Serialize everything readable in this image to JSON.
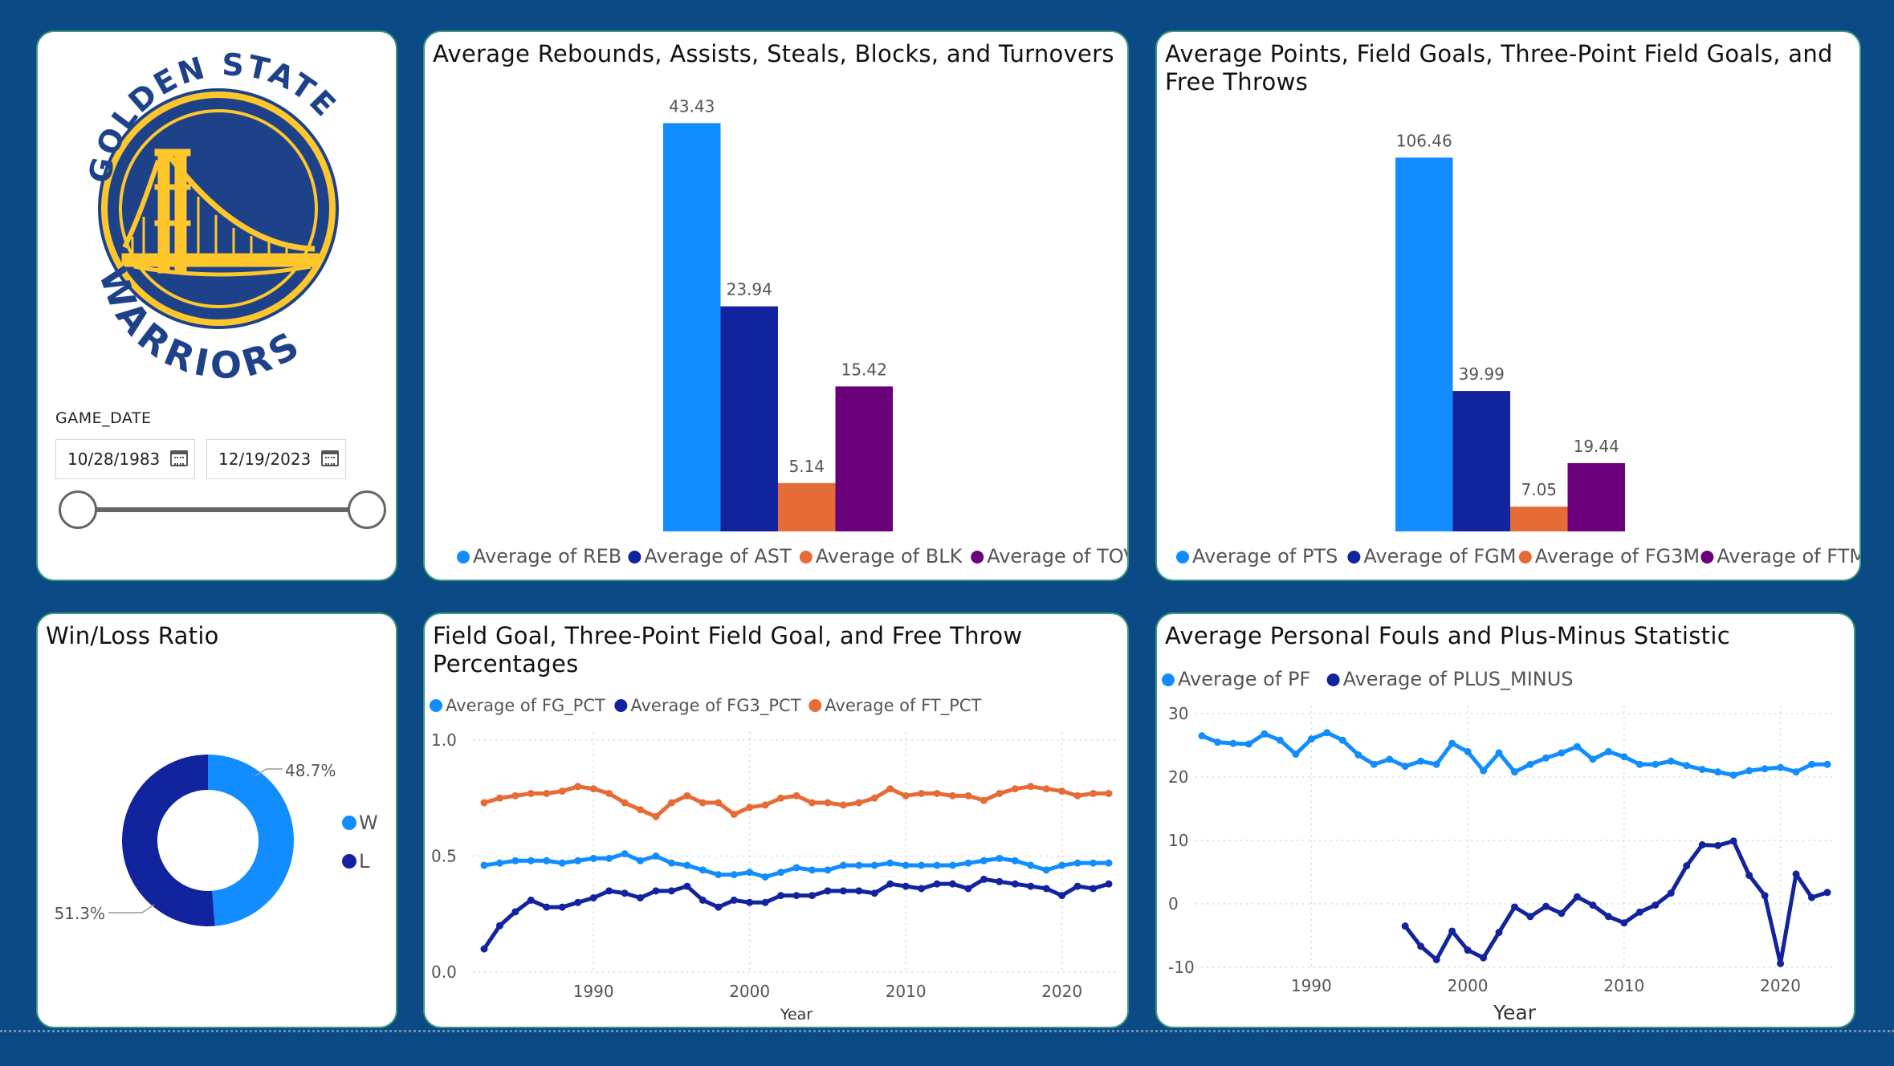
{
  "slicer": {
    "field_label": "GAME_DATE",
    "start_date": "10/28/1983",
    "end_date": "12/19/2023"
  },
  "logo": {
    "text_top": "GOLDEN STATE",
    "text_bottom": "WARRIORS",
    "colors": {
      "blue": "#1d428a",
      "gold": "#ffc72c"
    }
  },
  "colors": {
    "light_blue": "#118dff",
    "dark_blue": "#12239e",
    "orange": "#e66c37",
    "purple": "#6b007b"
  },
  "chart_data": [
    {
      "id": "reb_ast_blk_tov",
      "type": "bar",
      "title": "Average Rebounds, Assists, Steals, Blocks, and Turnovers",
      "categories": [
        "Average of REB",
        "Average of AST",
        "Average of BLK",
        "Average of TOV"
      ],
      "values": [
        43.43,
        23.94,
        5.14,
        15.42
      ],
      "data_labels": [
        "43.43",
        "23.94",
        "5.14",
        "15.42"
      ],
      "colors": [
        "#118dff",
        "#12239e",
        "#e66c37",
        "#6b007b"
      ],
      "legend_position": "bottom",
      "ylim": [
        0,
        45
      ]
    },
    {
      "id": "pts_fgm_fg3m_ftm",
      "type": "bar",
      "title": "Average Points, Field Goals, Three-Point Field Goals, and Free Throws",
      "categories": [
        "Average of PTS",
        "Average of FGM",
        "Average of FG3M",
        "Average of FTM"
      ],
      "values": [
        106.46,
        39.99,
        7.05,
        19.44
      ],
      "data_labels": [
        "106.46",
        "39.99",
        "7.05",
        "19.44"
      ],
      "colors": [
        "#118dff",
        "#12239e",
        "#e66c37",
        "#6b007b"
      ],
      "legend_position": "bottom",
      "ylim": [
        0,
        115
      ]
    },
    {
      "id": "win_loss",
      "type": "pie",
      "title": "Win/Loss Ratio",
      "labels": [
        "W",
        "L"
      ],
      "values": [
        48.7,
        51.3
      ],
      "data_labels": [
        "48.7%",
        "51.3%"
      ],
      "colors": [
        "#118dff",
        "#12239e"
      ],
      "legend_position": "right"
    },
    {
      "id": "pct_lines",
      "type": "line",
      "title": "Field Goal, Three-Point Field Goal, and Free Throw Percentages",
      "xlabel": "Year",
      "xlim": [
        1983,
        2023
      ],
      "ylim": [
        0,
        1
      ],
      "x_ticks": [
        1990,
        2000,
        2010,
        2020
      ],
      "y_ticks": [
        0,
        0.5,
        1
      ],
      "y_tick_labels": [
        "0.0",
        "0.5",
        "1.0"
      ],
      "legend_position": "top-left",
      "x": [
        1983,
        1984,
        1985,
        1986,
        1987,
        1988,
        1989,
        1990,
        1991,
        1992,
        1993,
        1994,
        1995,
        1996,
        1997,
        1998,
        1999,
        2000,
        2001,
        2002,
        2003,
        2004,
        2005,
        2006,
        2007,
        2008,
        2009,
        2010,
        2011,
        2012,
        2013,
        2014,
        2015,
        2016,
        2017,
        2018,
        2019,
        2020,
        2021,
        2022,
        2023
      ],
      "series": [
        {
          "name": "Average of FG_PCT",
          "color": "#118dff",
          "values": [
            0.46,
            0.47,
            0.48,
            0.48,
            0.48,
            0.47,
            0.48,
            0.49,
            0.49,
            0.51,
            0.48,
            0.5,
            0.47,
            0.46,
            0.44,
            0.42,
            0.42,
            0.43,
            0.41,
            0.43,
            0.45,
            0.44,
            0.44,
            0.46,
            0.46,
            0.46,
            0.47,
            0.46,
            0.46,
            0.46,
            0.46,
            0.47,
            0.48,
            0.49,
            0.48,
            0.46,
            0.44,
            0.46,
            0.47,
            0.47,
            0.47
          ]
        },
        {
          "name": "Average of FG3_PCT",
          "color": "#12239e",
          "values": [
            0.1,
            0.2,
            0.26,
            0.31,
            0.28,
            0.28,
            0.3,
            0.32,
            0.35,
            0.34,
            0.32,
            0.35,
            0.35,
            0.37,
            0.31,
            0.28,
            0.31,
            0.3,
            0.3,
            0.33,
            0.33,
            0.33,
            0.35,
            0.35,
            0.35,
            0.34,
            0.38,
            0.37,
            0.36,
            0.38,
            0.38,
            0.36,
            0.4,
            0.39,
            0.38,
            0.37,
            0.36,
            0.33,
            0.37,
            0.36,
            0.38
          ]
        },
        {
          "name": "Average of FT_PCT",
          "color": "#e66c37",
          "values": [
            0.73,
            0.75,
            0.76,
            0.77,
            0.77,
            0.78,
            0.8,
            0.79,
            0.77,
            0.73,
            0.7,
            0.67,
            0.73,
            0.76,
            0.73,
            0.73,
            0.68,
            0.71,
            0.72,
            0.75,
            0.76,
            0.73,
            0.73,
            0.72,
            0.73,
            0.75,
            0.79,
            0.76,
            0.77,
            0.77,
            0.76,
            0.76,
            0.74,
            0.77,
            0.79,
            0.8,
            0.79,
            0.78,
            0.76,
            0.77,
            0.77
          ]
        }
      ]
    },
    {
      "id": "pf_plus_minus",
      "type": "line",
      "title": "Average Personal Fouls and Plus-Minus Statistic",
      "xlabel": "Year",
      "xlim": [
        1983,
        2023
      ],
      "ylim": [
        -10,
        30
      ],
      "x_ticks": [
        1990,
        2000,
        2010,
        2020
      ],
      "y_ticks": [
        -10,
        0,
        10,
        20,
        30
      ],
      "legend_position": "top-left",
      "series": [
        {
          "name": "Average of PF",
          "color": "#118dff",
          "x": [
            1983,
            1984,
            1985,
            1986,
            1987,
            1988,
            1989,
            1990,
            1991,
            1992,
            1993,
            1994,
            1995,
            1996,
            1997,
            1998,
            1999,
            2000,
            2001,
            2002,
            2003,
            2004,
            2005,
            2006,
            2007,
            2008,
            2009,
            2010,
            2011,
            2012,
            2013,
            2014,
            2015,
            2016,
            2017,
            2018,
            2019,
            2020,
            2021,
            2022,
            2023
          ],
          "values": [
            26.5,
            25.5,
            25.3,
            25.2,
            26.8,
            25.8,
            23.6,
            26.0,
            27.0,
            25.8,
            23.5,
            22.0,
            22.8,
            21.7,
            22.5,
            22.0,
            25.3,
            24.0,
            21.0,
            23.8,
            20.8,
            22.0,
            23.0,
            23.8,
            24.8,
            22.8,
            24.0,
            23.2,
            22.0,
            22.0,
            22.5,
            21.8,
            21.2,
            20.8,
            20.3,
            21.0,
            21.3,
            21.5,
            20.8,
            22.0,
            22.0
          ]
        },
        {
          "name": "Average of PLUS_MINUS",
          "color": "#12239e",
          "x": [
            1996,
            1997,
            1998,
            1999,
            2000,
            2001,
            2002,
            2003,
            2004,
            2005,
            2006,
            2007,
            2008,
            2009,
            2010,
            2011,
            2012,
            2013,
            2014,
            2015,
            2016,
            2017,
            2018,
            2019,
            2020,
            2021,
            2022,
            2023
          ],
          "values": [
            -3.5,
            -6.7,
            -8.8,
            -4.3,
            -7.3,
            -8.5,
            -4.5,
            -0.5,
            -2.0,
            -0.4,
            -1.5,
            1.1,
            -0.2,
            -2.0,
            -3.0,
            -1.3,
            -0.2,
            1.7,
            6.0,
            9.3,
            9.2,
            9.9,
            4.5,
            1.3,
            -9.4,
            4.7,
            1.0,
            1.8
          ]
        }
      ]
    }
  ]
}
